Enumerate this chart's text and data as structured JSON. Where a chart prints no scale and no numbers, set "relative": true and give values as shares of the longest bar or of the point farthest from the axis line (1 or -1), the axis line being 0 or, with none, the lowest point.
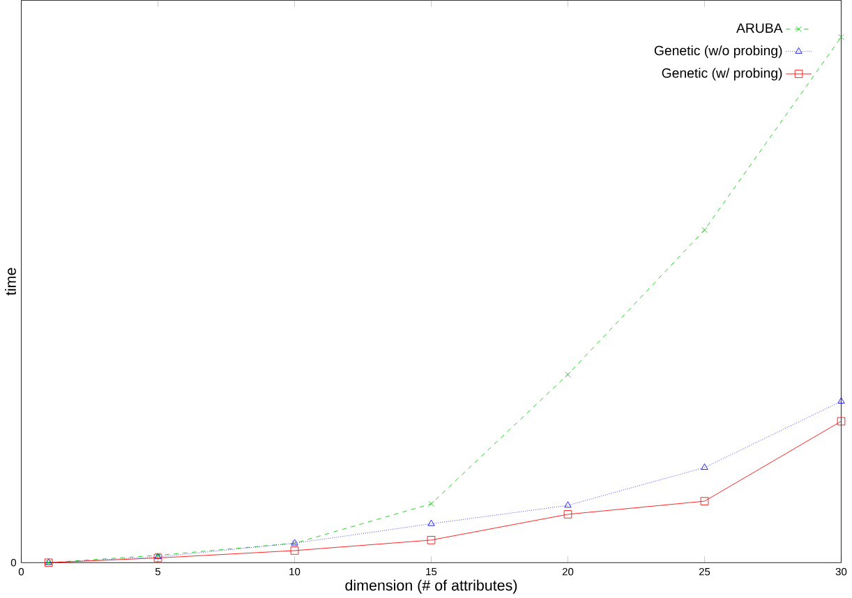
{
  "chart_data": {
    "type": "line",
    "xlabel": "dimension (# of attributes)",
    "ylabel": "time",
    "x": [
      1,
      5,
      10,
      15,
      20,
      25,
      30
    ],
    "xlim": [
      0,
      30
    ],
    "xticks": [
      0,
      5,
      10,
      15,
      20,
      25,
      30
    ],
    "annotations": [
      "0"
    ],
    "relative": true,
    "legend": "top right",
    "series": [
      {
        "name": "ARUBA",
        "color": "#00cc00",
        "marker": "cross",
        "line_style": "dashed",
        "values": [
          0,
          0.014,
          0.037,
          0.112,
          0.358,
          0.633,
          1
        ]
      },
      {
        "name": "Genetic (w/o probing)",
        "color": "#0000ff",
        "marker": "triangle",
        "line_style": "dotted",
        "values": [
          0,
          0.011,
          0.037,
          0.074,
          0.109,
          0.181,
          0.307
        ]
      },
      {
        "name": "Genetic (w/ probing)",
        "color": "#ff0000",
        "marker": "square",
        "line_style": "solid",
        "values": [
          0,
          0.009,
          0.023,
          0.043,
          0.092,
          0.117,
          0.269
        ]
      }
    ]
  }
}
